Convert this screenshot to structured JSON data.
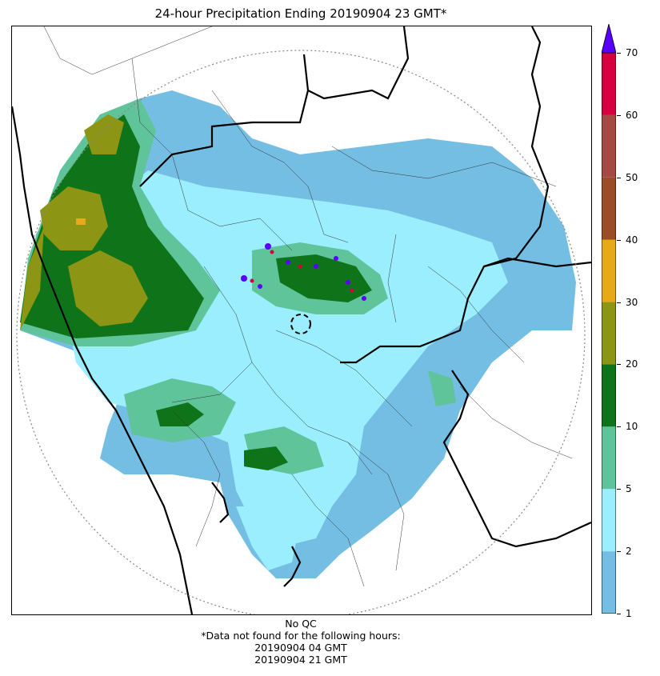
{
  "title": "24-hour Precipitation Ending 20190904 23 GMT*",
  "footer": {
    "line1": "No QC",
    "line2": "*Data not found for the following hours:",
    "line3": "20190904 04 GMT",
    "line4": "20190904 21 GMT"
  },
  "colorbar": {
    "levels": [
      "1",
      "2",
      "5",
      "10",
      "20",
      "30",
      "40",
      "50",
      "60",
      "70"
    ],
    "colors": [
      "#74bde3",
      "#9aeefe",
      "#5fc49a",
      "#0f7419",
      "#8c9514",
      "#e6a919",
      "#9b4d27",
      "#a54a42",
      "#d6003e"
    ],
    "extend_color": "#5a00ff"
  },
  "map": {
    "radar_range_ring": "dotted-circle",
    "radar_site_marker": "dashed-circle"
  }
}
